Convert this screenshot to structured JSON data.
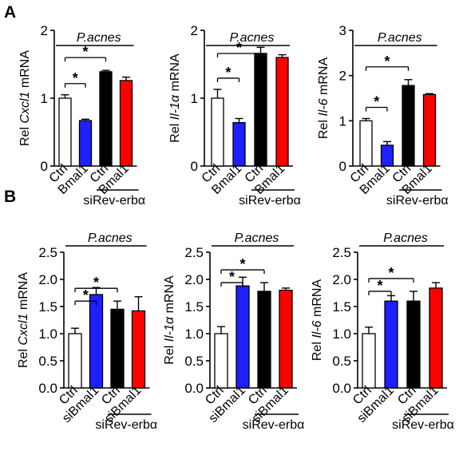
{
  "panels": [
    {
      "letter": "A",
      "chart_index": 0
    },
    {
      "letter": "B",
      "chart_index": 3
    }
  ],
  "chart_data": [
    {
      "type": "bar",
      "panel": "A",
      "ylabel_prefix": "Rel ",
      "ylabel_gene": "Cxcl1",
      "ylabel_suffix": " mRNA",
      "categories": [
        "Ctrl",
        "Bmal1",
        "Ctrl",
        "Bmal1"
      ],
      "values": [
        1.0,
        0.67,
        1.39,
        1.26
      ],
      "errors": [
        0.05,
        0.02,
        0.02,
        0.05
      ],
      "colors": [
        "#ffffff",
        "#1f1fff",
        "#000000",
        "#ff0000"
      ],
      "ylim": [
        0,
        2
      ],
      "yticks": [
        "0",
        "1",
        "2"
      ],
      "treatment_label": "P.acnes",
      "group_label": "siRev-erbα",
      "significance": [
        "*",
        "*"
      ]
    },
    {
      "type": "bar",
      "panel": "A",
      "ylabel_prefix": "Rel ",
      "ylabel_gene": "Il-1α",
      "ylabel_suffix": " mRNA",
      "categories": [
        "Ctrl",
        "Bmal1",
        "Ctrl",
        "Bmal1"
      ],
      "values": [
        1.0,
        0.64,
        1.66,
        1.6
      ],
      "errors": [
        0.13,
        0.06,
        0.09,
        0.04
      ],
      "colors": [
        "#ffffff",
        "#1f1fff",
        "#000000",
        "#ff0000"
      ],
      "ylim": [
        0,
        2
      ],
      "yticks": [
        "0",
        "1",
        "2"
      ],
      "treatment_label": "P.acnes",
      "group_label": "siRev-erbα",
      "significance": [
        "*",
        "*"
      ]
    },
    {
      "type": "bar",
      "panel": "A",
      "ylabel_prefix": "Rel ",
      "ylabel_gene": "Il-6",
      "ylabel_suffix": " mRNA",
      "categories": [
        "Ctrl",
        "Bmal1",
        "Ctrl",
        "Bmal1"
      ],
      "values": [
        1.0,
        0.46,
        1.78,
        1.58
      ],
      "errors": [
        0.05,
        0.08,
        0.13,
        0.02
      ],
      "colors": [
        "#ffffff",
        "#1f1fff",
        "#000000",
        "#ff0000"
      ],
      "ylim": [
        0,
        3
      ],
      "yticks": [
        "0",
        "1",
        "2",
        "3"
      ],
      "treatment_label": "P.acnes",
      "group_label": "siRev-erbα",
      "significance": [
        "*",
        "*"
      ]
    },
    {
      "type": "bar",
      "panel": "B",
      "ylabel_prefix": "Rel ",
      "ylabel_gene": "Cxcl1",
      "ylabel_suffix": " mRNA",
      "categories": [
        "Ctrl",
        "siBmal1",
        "Ctrl",
        "siBmal1"
      ],
      "values": [
        1.0,
        1.72,
        1.45,
        1.42
      ],
      "errors": [
        0.1,
        0.13,
        0.15,
        0.26
      ],
      "colors": [
        "#ffffff",
        "#1f1fff",
        "#000000",
        "#ff0000"
      ],
      "ylim": [
        0,
        2.5
      ],
      "yticks": [
        "0.0",
        "0.5",
        "1.0",
        "1.5",
        "2.0",
        "2.5"
      ],
      "treatment_label": "P.acnes",
      "group_label": "siRev-erbα",
      "significance": [
        "*",
        "*"
      ]
    },
    {
      "type": "bar",
      "panel": "B",
      "ylabel_prefix": "Rel ",
      "ylabel_gene": "Il-1α",
      "ylabel_suffix": " mRNA",
      "categories": [
        "Ctrl",
        "siBmal1",
        "Ctrl",
        "siBmal1"
      ],
      "values": [
        1.0,
        1.88,
        1.78,
        1.8
      ],
      "errors": [
        0.13,
        0.16,
        0.16,
        0.04
      ],
      "colors": [
        "#ffffff",
        "#1f1fff",
        "#000000",
        "#ff0000"
      ],
      "ylim": [
        0,
        2.5
      ],
      "yticks": [
        "0.0",
        "0.5",
        "1.0",
        "1.5",
        "2.0",
        "2.5"
      ],
      "treatment_label": "P.acnes",
      "group_label": "siRev-erbα",
      "significance": [
        "*",
        "*"
      ]
    },
    {
      "type": "bar",
      "panel": "B",
      "ylabel_prefix": "Rel ",
      "ylabel_gene": "Il-6",
      "ylabel_suffix": " mRNA",
      "categories": [
        "Ctrl",
        "siBmal1",
        "Ctrl",
        "siBmal1"
      ],
      "values": [
        1.0,
        1.6,
        1.6,
        1.84
      ],
      "errors": [
        0.12,
        0.1,
        0.18,
        0.1
      ],
      "colors": [
        "#ffffff",
        "#1f1fff",
        "#000000",
        "#ff0000"
      ],
      "ylim": [
        0,
        2.5
      ],
      "yticks": [
        "0.0",
        "0.5",
        "1.0",
        "1.5",
        "2.0",
        "2.5"
      ],
      "treatment_label": "P.acnes",
      "group_label": "siRev-erbα",
      "significance": [
        "*",
        "*"
      ]
    }
  ]
}
